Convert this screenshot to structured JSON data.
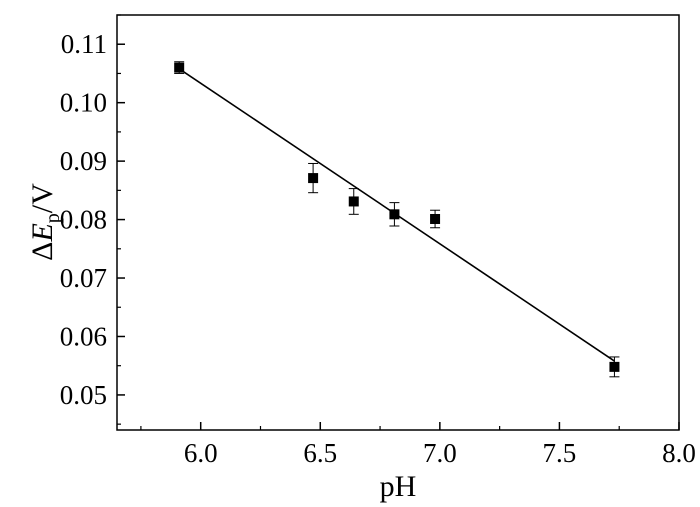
{
  "chart_data": {
    "type": "scatter",
    "xlabel": "pH",
    "ylabel": {
      "delta": "Δ",
      "symbol": "E",
      "subscript": "p",
      "unit": "/V"
    },
    "xlim": [
      5.65,
      8.0
    ],
    "ylim": [
      0.044,
      0.115
    ],
    "xticks": [
      6.0,
      6.5,
      7.0,
      7.5,
      8.0
    ],
    "xtick_labels": [
      "6.0",
      "6.5",
      "7.0",
      "7.5",
      "8.0"
    ],
    "yticks": [
      0.05,
      0.06,
      0.07,
      0.08,
      0.09,
      0.1,
      0.11
    ],
    "ytick_labels": [
      "0.05",
      "0.06",
      "0.07",
      "0.08",
      "0.09",
      "0.10",
      "0.11"
    ],
    "grid": false,
    "marker": "square",
    "color": "#000000",
    "points": [
      {
        "x": 5.91,
        "y": 0.106,
        "err": 0.001
      },
      {
        "x": 6.47,
        "y": 0.0871,
        "err": 0.0025
      },
      {
        "x": 6.64,
        "y": 0.0831,
        "err": 0.0022
      },
      {
        "x": 6.81,
        "y": 0.0809,
        "err": 0.002
      },
      {
        "x": 6.98,
        "y": 0.0801,
        "err": 0.0015
      },
      {
        "x": 7.73,
        "y": 0.0548,
        "err": 0.0017
      }
    ],
    "fit_line": {
      "x": [
        5.91,
        7.73
      ],
      "y": [
        0.1058,
        0.0558
      ]
    }
  }
}
